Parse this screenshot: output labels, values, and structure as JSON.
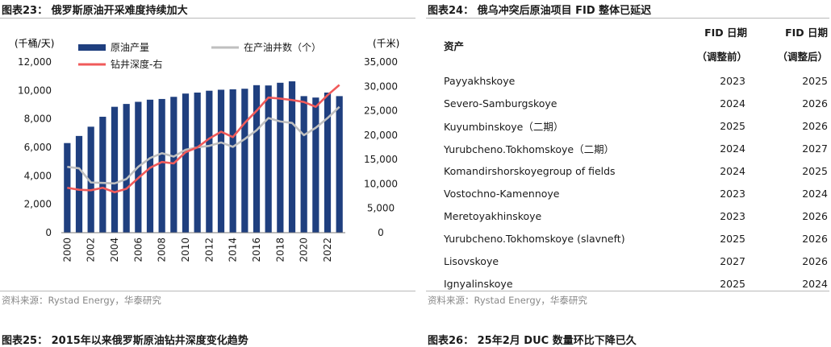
{
  "left": {
    "title": "图表23： 俄罗斯原油开采难度持续加大",
    "source": "资料来源：Rystad Energy，华泰研究",
    "next_title_cut": "图表25： 2015年以来俄罗斯原油钻井深度变化趋势"
  },
  "right": {
    "title": "图表24： 俄乌冲突后原油项目 FID 整体已延迟",
    "source": "资料来源：Rystad Energy，华泰研究",
    "next_title_cut": "图表26： 25年2月 DUC 数量环比下降已久",
    "table": {
      "header": {
        "asset": "资产",
        "col1_line1": "FID 日期",
        "col1_line2": "（调整前）",
        "col2_line1": "FID 日期",
        "col2_line2": "（调整后）"
      },
      "rows": [
        {
          "asset": "Payyakhskoye",
          "before": "2023",
          "after": "2025"
        },
        {
          "asset": "Severo-Samburgskoye",
          "before": "2024",
          "after": "2026"
        },
        {
          "asset": "Kuyumbinskoye（二期）",
          "before": "2025",
          "after": "2026"
        },
        {
          "asset": "Yurubcheno.Tokhomskoye（二期）",
          "before": "2024",
          "after": "2027"
        },
        {
          "asset": "Komandirshorskoyegroup of fields",
          "before": "2024",
          "after": "2025"
        },
        {
          "asset": "Vostochno-Kamennoye",
          "before": "2023",
          "after": "2024"
        },
        {
          "asset": "Meretoyakhinskoye",
          "before": "2023",
          "after": "2026"
        },
        {
          "asset": "Yurubcheno.Tokhomskoye (slavneft)",
          "before": "2025",
          "after": "2026"
        },
        {
          "asset": "Lisovskoye",
          "before": "2027",
          "after": "2026"
        },
        {
          "asset": "Ignyalinskoye",
          "before": "2025",
          "after": "2024"
        }
      ]
    }
  },
  "chart_data": {
    "type": "bar",
    "title": "俄罗斯原油开采难度持续加大",
    "left_axis_label": "(千桶/天)",
    "right_axis_label": "(千米)",
    "ylim_left": [
      0,
      12000
    ],
    "yticks_left": [
      "0",
      "2,000",
      "4,000",
      "6,000",
      "8,000",
      "10,000",
      "12,000"
    ],
    "ylim_right": [
      0,
      35000
    ],
    "yticks_right": [
      "0",
      "5,000",
      "10,000",
      "15,000",
      "20,000",
      "25,000",
      "30,000",
      "35,000"
    ],
    "x": [
      2000,
      2001,
      2002,
      2003,
      2004,
      2005,
      2006,
      2007,
      2008,
      2009,
      2010,
      2011,
      2012,
      2013,
      2014,
      2015,
      2016,
      2017,
      2018,
      2019,
      2020,
      2021,
      2022,
      2023
    ],
    "xtick_labels": [
      "2000",
      "2002",
      "2004",
      "2006",
      "2008",
      "2010",
      "2012",
      "2014",
      "2016",
      "2018",
      "2020",
      "2022"
    ],
    "series": [
      {
        "name": "原油产量",
        "type": "bar",
        "axis": "left",
        "color": "#1f3f7f",
        "values": [
          6300,
          6800,
          7450,
          8150,
          8850,
          9050,
          9200,
          9350,
          9400,
          9550,
          9780,
          9850,
          9980,
          10050,
          10080,
          10120,
          10370,
          10350,
          10540,
          10640,
          9600,
          9500,
          9850,
          9600
        ]
      },
      {
        "name": "在产油井数（个）",
        "type": "line",
        "axis": "right",
        "color": "#bfbfbf",
        "values": [
          13500,
          13200,
          10300,
          10200,
          10100,
          11000,
          13500,
          15300,
          16300,
          15600,
          17000,
          17500,
          17800,
          18500,
          17600,
          19200,
          21000,
          23500,
          22800,
          22500,
          20000,
          21500,
          23500,
          25800
        ]
      },
      {
        "name": "钻井深度-右",
        "type": "line",
        "axis": "right",
        "color": "#f05a5a",
        "values": [
          9200,
          8800,
          8700,
          9200,
          8300,
          9000,
          11200,
          13300,
          14500,
          14200,
          16500,
          17500,
          19300,
          20700,
          19600,
          22500,
          25000,
          27700,
          27500,
          27200,
          26800,
          25800,
          28200,
          30300
        ]
      }
    ],
    "legend": "top"
  }
}
